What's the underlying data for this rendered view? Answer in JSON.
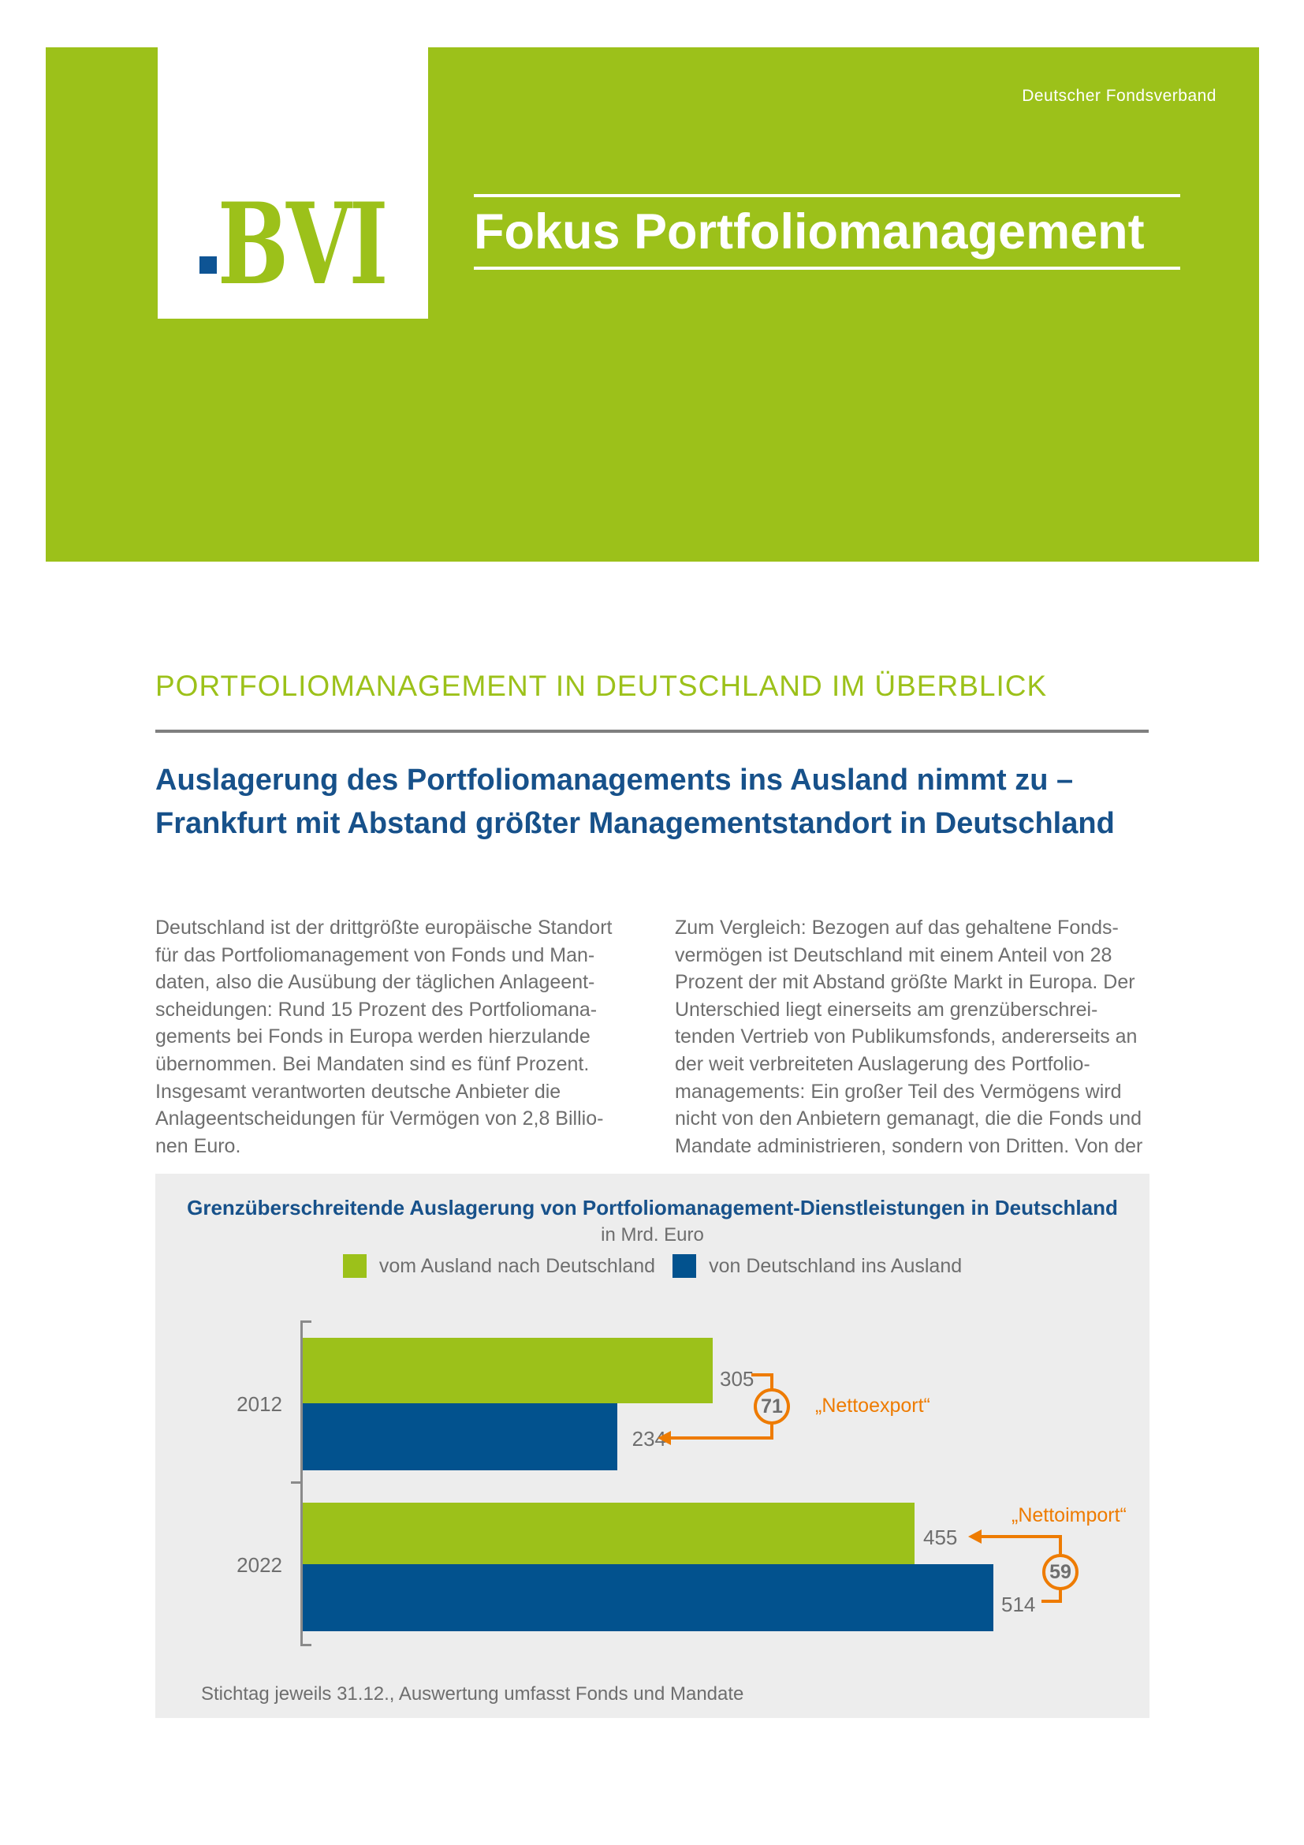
{
  "banner": {
    "brand_top_right": "Deutscher Fondsverband",
    "logo_text": "BVI",
    "title": "Fokus Portfoliomanagement"
  },
  "section": {
    "kicker": "PORTFOLIOMANAGEMENT IN DEUTSCHLAND IM ÜBERBLICK",
    "headline_line1": "Auslagerung des Portfoliomanagements ins Ausland nimmt zu –",
    "headline_line2": "Frankfurt mit Abstand größter Managementstandort in Deutschland"
  },
  "body": {
    "col_left_lines": [
      "Deutschland ist der drittgrößte europäische Standort",
      "für das Portfoliomanagement von Fonds und Man-",
      "daten, also die Ausübung der täglichen Anlageent-",
      "scheidungen: Rund 15 Prozent des Portfoliomana-",
      "gements bei Fonds in Europa werden hierzulande",
      "übernommen. Bei Mandaten sind es fünf Prozent.",
      "Insgesamt verantworten deutsche Anbieter die",
      "Anlageentscheidungen für Vermögen von 2,8 Billio-",
      "nen Euro."
    ],
    "col_right_lines": [
      "Zum Vergleich: Bezogen auf das gehaltene Fonds-",
      "vermögen ist Deutschland mit einem Anteil von 28",
      "Prozent der mit Abstand größte Markt in Europa. Der",
      "Unterschied liegt einerseits am grenzüberschrei-",
      "tenden Vertrieb von Publikumsfonds, andererseits an",
      "der weit verbreiteten Auslagerung des Portfolio-",
      "managements: Ein großer Teil des Vermögens wird",
      "nicht von den Anbietern gemanagt, die die Fonds und",
      "Mandate administrieren, sondern von Dritten. Von der"
    ]
  },
  "chart_data": {
    "type": "bar",
    "orientation": "horizontal",
    "title": "Grenzüberschreitende Auslagerung von Portfoliomanagement-Dienstleistungen in Deutschland",
    "subtitle": "in Mrd. Euro",
    "categories": [
      "2012",
      "2022"
    ],
    "series": [
      {
        "name": "vom Ausland nach Deutschland",
        "color": "#9cc11a",
        "values": [
          305,
          455
        ]
      },
      {
        "name": "von Deutschland ins Ausland",
        "color": "#02528e",
        "values": [
          234,
          514
        ]
      }
    ],
    "annotations": [
      {
        "category": "2012",
        "value": 71,
        "label": "„Nettoexport“"
      },
      {
        "category": "2022",
        "value": 59,
        "label": "„Nettoimport“"
      }
    ],
    "footnote": "Stichtag jeweils 31.12., Auswertung umfasst Fonds und Mandate",
    "legend_position": "top-center",
    "grid": false,
    "x_range": [
      0,
      560
    ]
  },
  "colors": {
    "green": "#9cc11a",
    "heading_blue": "#17518a",
    "bar_blue": "#02528e",
    "orange": "#ee7b00",
    "gray_text": "#6e6e6e",
    "panel_bg": "#ededed"
  }
}
